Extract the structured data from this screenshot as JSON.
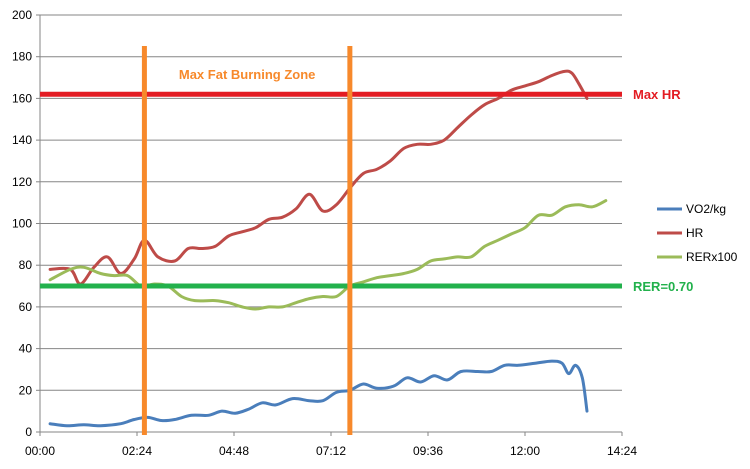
{
  "chart_data": {
    "type": "line",
    "x_unit": "mm:ss",
    "x_ticks": [
      "00:00",
      "02:24",
      "04:48",
      "07:12",
      "09:36",
      "12:00",
      "14:24"
    ],
    "xlim": [
      "00:00",
      "14:24"
    ],
    "ylim": [
      0,
      200
    ],
    "y_ticks": [
      0,
      20,
      40,
      60,
      80,
      100,
      120,
      140,
      160,
      180,
      200
    ],
    "grid": "horizontal",
    "legend_position": "right",
    "series": [
      {
        "name": "VO2/kg",
        "color": "#4a7ebb",
        "points": [
          [
            "00:15",
            4
          ],
          [
            "00:40",
            3
          ],
          [
            "01:05",
            3.5
          ],
          [
            "01:30",
            3
          ],
          [
            "02:00",
            4
          ],
          [
            "02:20",
            6
          ],
          [
            "02:40",
            7
          ],
          [
            "03:00",
            5.5
          ],
          [
            "03:20",
            6
          ],
          [
            "03:45",
            8
          ],
          [
            "04:10",
            8
          ],
          [
            "04:30",
            10
          ],
          [
            "04:50",
            9
          ],
          [
            "05:10",
            11
          ],
          [
            "05:30",
            14
          ],
          [
            "05:50",
            13
          ],
          [
            "06:15",
            16
          ],
          [
            "06:40",
            15
          ],
          [
            "07:00",
            15
          ],
          [
            "07:20",
            19
          ],
          [
            "07:40",
            20
          ],
          [
            "08:00",
            23
          ],
          [
            "08:20",
            21
          ],
          [
            "08:45",
            22
          ],
          [
            "09:05",
            26
          ],
          [
            "09:25",
            24
          ],
          [
            "09:45",
            27
          ],
          [
            "10:05",
            25
          ],
          [
            "10:25",
            29
          ],
          [
            "10:50",
            29
          ],
          [
            "11:10",
            29
          ],
          [
            "11:30",
            32
          ],
          [
            "11:50",
            32
          ],
          [
            "12:15",
            33
          ],
          [
            "12:40",
            34
          ],
          [
            "12:55",
            33
          ],
          [
            "13:05",
            28
          ],
          [
            "13:15",
            32
          ],
          [
            "13:25",
            26
          ],
          [
            "13:32",
            10
          ]
        ]
      },
      {
        "name": "HR",
        "color": "#be4b48",
        "points": [
          [
            "00:15",
            78
          ],
          [
            "00:45",
            78
          ],
          [
            "01:00",
            71
          ],
          [
            "01:20",
            79
          ],
          [
            "01:40",
            84
          ],
          [
            "02:00",
            76
          ],
          [
            "02:20",
            83
          ],
          [
            "02:35",
            92
          ],
          [
            "02:55",
            84
          ],
          [
            "03:20",
            82
          ],
          [
            "03:40",
            88
          ],
          [
            "04:00",
            88
          ],
          [
            "04:20",
            89
          ],
          [
            "04:40",
            94
          ],
          [
            "05:00",
            96
          ],
          [
            "05:20",
            98
          ],
          [
            "05:40",
            102
          ],
          [
            "06:00",
            103
          ],
          [
            "06:20",
            107
          ],
          [
            "06:40",
            114
          ],
          [
            "07:00",
            106
          ],
          [
            "07:20",
            109
          ],
          [
            "07:40",
            117
          ],
          [
            "08:00",
            124
          ],
          [
            "08:20",
            126
          ],
          [
            "08:40",
            130
          ],
          [
            "09:00",
            136
          ],
          [
            "09:20",
            138
          ],
          [
            "09:40",
            138
          ],
          [
            "10:00",
            140
          ],
          [
            "10:20",
            146
          ],
          [
            "10:40",
            152
          ],
          [
            "11:00",
            157
          ],
          [
            "11:20",
            160
          ],
          [
            "11:40",
            164
          ],
          [
            "12:00",
            166
          ],
          [
            "12:20",
            168
          ],
          [
            "12:40",
            171
          ],
          [
            "13:00",
            173
          ],
          [
            "13:10",
            172
          ],
          [
            "13:20",
            167
          ],
          [
            "13:32",
            160
          ]
        ]
      },
      {
        "name": "RERx100",
        "color": "#9bbb59",
        "points": [
          [
            "00:15",
            73
          ],
          [
            "00:45",
            78
          ],
          [
            "01:05",
            79
          ],
          [
            "01:30",
            76
          ],
          [
            "01:50",
            75
          ],
          [
            "02:10",
            75
          ],
          [
            "02:30",
            70
          ],
          [
            "02:50",
            71
          ],
          [
            "03:10",
            70
          ],
          [
            "03:30",
            65
          ],
          [
            "03:50",
            63
          ],
          [
            "04:20",
            63
          ],
          [
            "04:40",
            62
          ],
          [
            "05:00",
            60
          ],
          [
            "05:20",
            59
          ],
          [
            "05:40",
            60
          ],
          [
            "06:00",
            60
          ],
          [
            "06:20",
            62
          ],
          [
            "06:40",
            64
          ],
          [
            "07:00",
            65
          ],
          [
            "07:20",
            65
          ],
          [
            "07:40",
            70
          ],
          [
            "08:00",
            72
          ],
          [
            "08:20",
            74
          ],
          [
            "08:40",
            75
          ],
          [
            "09:00",
            76
          ],
          [
            "09:20",
            78
          ],
          [
            "09:40",
            82
          ],
          [
            "10:00",
            83
          ],
          [
            "10:20",
            84
          ],
          [
            "10:40",
            84
          ],
          [
            "11:00",
            89
          ],
          [
            "11:20",
            92
          ],
          [
            "11:40",
            95
          ],
          [
            "12:00",
            98
          ],
          [
            "12:20",
            104
          ],
          [
            "12:40",
            104
          ],
          [
            "13:00",
            108
          ],
          [
            "13:20",
            109
          ],
          [
            "13:40",
            108
          ],
          [
            "14:00",
            111
          ]
        ]
      }
    ],
    "reference_lines": [
      {
        "orientation": "horizontal",
        "y": 162,
        "label": "Max HR",
        "color": "#e31c23"
      },
      {
        "orientation": "horizontal",
        "y": 70,
        "label": "RER=0.70",
        "color": "#22b14c"
      },
      {
        "orientation": "vertical",
        "x": "02:35",
        "color": "#f7892b"
      },
      {
        "orientation": "vertical",
        "x": "07:40",
        "color": "#f7892b"
      }
    ],
    "annotations": [
      {
        "text": "Max Fat Burning Zone",
        "color": "#f7892b"
      }
    ]
  }
}
